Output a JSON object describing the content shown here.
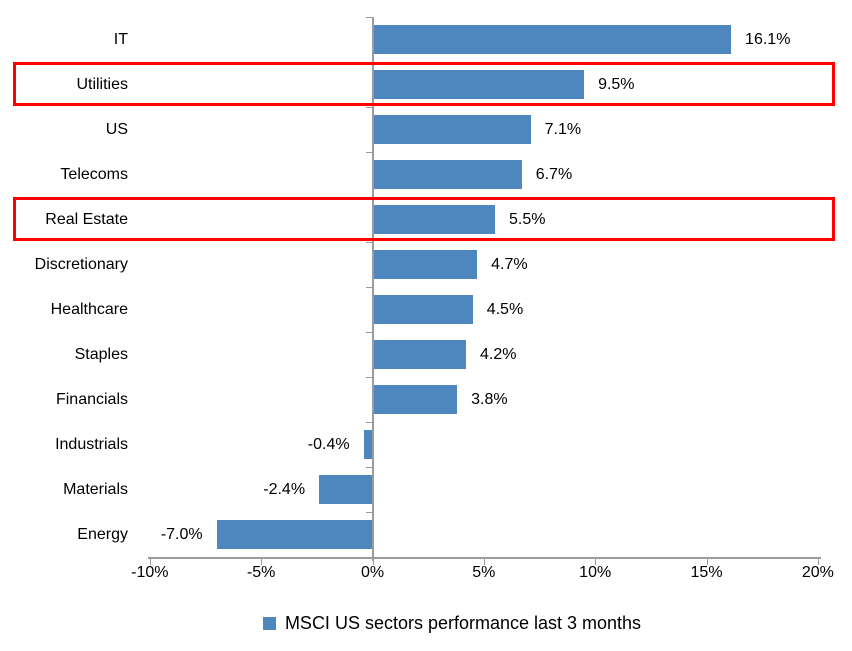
{
  "chart_data": {
    "type": "bar",
    "orientation": "horizontal",
    "title": "",
    "categories": [
      "IT",
      "Utilities",
      "US",
      "Telecoms",
      "Real Estate",
      "Discretionary",
      "Healthcare",
      "Staples",
      "Financials",
      "Industrials",
      "Materials",
      "Energy"
    ],
    "values": [
      16.1,
      9.5,
      7.1,
      6.7,
      5.5,
      4.7,
      4.5,
      4.2,
      3.8,
      -0.4,
      -2.4,
      -7.0
    ],
    "value_labels": [
      "16.1%",
      "9.5%",
      "7.1%",
      "6.7%",
      "5.5%",
      "4.7%",
      "4.5%",
      "4.2%",
      "3.8%",
      "-0.4%",
      "-2.4%",
      "-7.0%"
    ],
    "highlighted_categories": [
      "Utilities",
      "Real Estate"
    ],
    "xlim": [
      -10,
      20
    ],
    "x_ticks": {
      "labels": [
        "-10%",
        "-5%",
        "0%",
        "5%",
        "10%",
        "15%",
        "20%"
      ],
      "values": [
        -10,
        -5,
        0,
        5,
        10,
        15,
        20
      ]
    },
    "grid": "off",
    "legend_position": "bottom",
    "legend_label": "MSCI US sectors performance last 3 months",
    "colors": {
      "bar": "#4e86be",
      "highlight_box": "#ff0000",
      "axis": "#9b9b9b",
      "text": "#000000"
    }
  }
}
